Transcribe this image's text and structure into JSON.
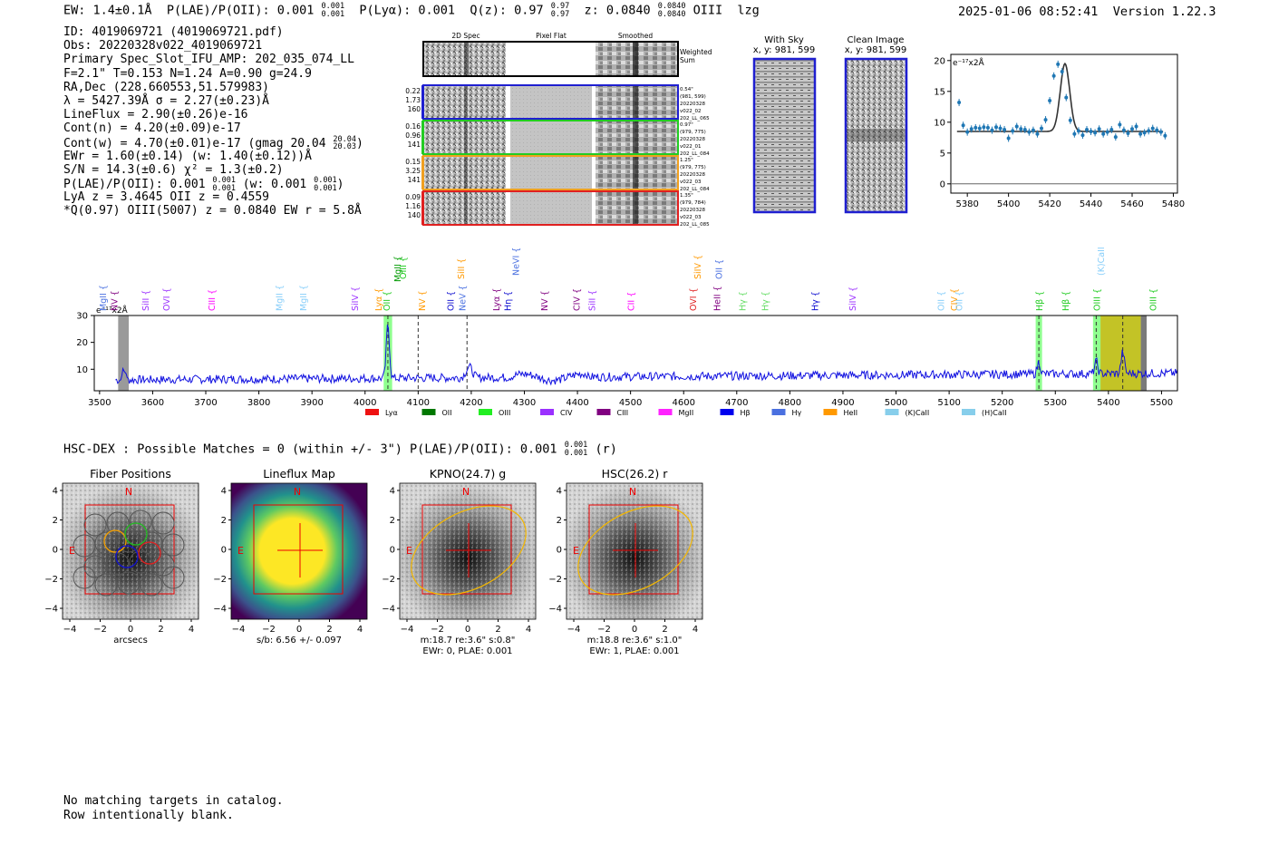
{
  "header": {
    "ew": "EW: 1.4±0.1Å",
    "plae": "P(LAE)/P(OII): 0.001",
    "plae_hi": "0.001",
    "plae_lo": "0.001",
    "plya": "P(Lyα): 0.001",
    "qz": "Q(z): 0.97",
    "qz_hi": "0.97",
    "qz_lo": "0.97",
    "z": "z: 0.0840",
    "z_hi": "0.0840",
    "z_lo": "0.0840",
    "line": "OIII",
    "flag": "lzg",
    "timestamp": "2025-01-06 08:52:41",
    "version": "Version 1.22.3"
  },
  "info": {
    "id": "ID: 4019069721 (4019069721.pdf)",
    "obs": "Obs: 20220328v022_4019069721",
    "primary": "Primary Spec_Slot_IFU_AMP: 202_035_074_LL",
    "fit": "F=2.1\"  T=0.153  N=1.24  A=0.90  g=24.9",
    "radec": "RA,Dec (228.660553,51.579983)",
    "lambda": "λ = 5427.39Å  σ = 2.27(±0.23)Å",
    "lineflux": "LineFlux = 2.90(±0.26)e-16",
    "contn": "Cont(n) = 4.20(±0.09)e-17",
    "contw": "Cont(w) = 4.70(±0.01)e-17 (gmag 20.04",
    "gmag_hi": "20.04",
    "gmag_lo": "20.03",
    "contw_close": ")",
    "ewr": "EWr = 1.60(±0.14) (w: 1.40(±0.12))Å",
    "sn": "S/N = 14.3(±0.6)  χ² = 1.3(±0.2)",
    "plae2": "P(LAE)/P(OII): 0.001",
    "plae2_hi": "0.001",
    "plae2_lo": "0.001",
    "plae2_w": "(w: 0.001",
    "plae2_w_hi": "0.001",
    "plae2_w_lo": "0.001",
    "plae2_close": ")",
    "lya": "LyA z = 3.4645  OII z = 0.4559",
    "q": "*Q(0.97) OIII(5007) z = 0.0840  EW r = 5.8Å"
  },
  "cutouts": {
    "col_labels": [
      "2D Spec",
      "Pixel Flat",
      "Smoothed"
    ],
    "weighted_sum": "Weighted Sum",
    "rows": [
      {
        "left": [
          "0.22",
          "1.73",
          "160"
        ],
        "right": [
          "0.54\"",
          "(981, 599)",
          "20220328",
          "v022_02",
          "202_LL_065"
        ],
        "color": "#1f1fd0"
      },
      {
        "left": [
          "0.16",
          "0.96",
          "141"
        ],
        "right": [
          "0.97\"",
          "(979, 775)",
          "20220328",
          "v022_01",
          "202_LL_084"
        ],
        "color": "#22cc22"
      },
      {
        "left": [
          "0.15",
          "3.25",
          "141"
        ],
        "right": [
          "1.25\"",
          "(979, 775)",
          "20220328",
          "v022_03",
          "202_LL_084"
        ],
        "color": "#f0a020"
      },
      {
        "left": [
          "0.09",
          "1.16",
          "140"
        ],
        "right": [
          "1.35\"",
          "(979, 784)",
          "20220328",
          "v022_03",
          "202_LL_085"
        ],
        "color": "#e02020"
      }
    ],
    "with_sky": "With Sky",
    "clean_image": "Clean Image",
    "xy": "x, y: 981, 599"
  },
  "zoom_spectrum": {
    "type": "scatter",
    "ylabel_unit": "e⁻¹⁷x2Å",
    "xlim": [
      5372,
      5482
    ],
    "ylim": [
      -1.5,
      21
    ],
    "xticks": [
      5380,
      5400,
      5420,
      5440,
      5460,
      5480
    ],
    "yticks": [
      0,
      5,
      10,
      15,
      20
    ],
    "x": [
      5376,
      5378,
      5380,
      5382,
      5384,
      5386,
      5388,
      5390,
      5392,
      5394,
      5396,
      5398,
      5400,
      5402,
      5404,
      5406,
      5408,
      5410,
      5412,
      5414,
      5416,
      5418,
      5420,
      5422,
      5424,
      5426,
      5428,
      5430,
      5432,
      5434,
      5436,
      5438,
      5440,
      5442,
      5444,
      5446,
      5448,
      5450,
      5452,
      5454,
      5456,
      5458,
      5460,
      5462,
      5464,
      5466,
      5468,
      5470,
      5472,
      5474,
      5476
    ],
    "y": [
      13.2,
      9.5,
      8.4,
      8.9,
      9.1,
      9.0,
      9.2,
      9.1,
      8.7,
      9.2,
      9.0,
      8.8,
      7.4,
      8.6,
      9.3,
      8.9,
      8.8,
      8.4,
      8.7,
      8.1,
      9.0,
      10.4,
      13.5,
      17.5,
      19.4,
      18.2,
      14.0,
      10.3,
      8.1,
      8.6,
      7.9,
      8.8,
      8.5,
      8.3,
      8.9,
      8.1,
      8.4,
      8.8,
      7.6,
      9.6,
      8.7,
      8.2,
      8.9,
      9.3,
      8.1,
      8.3,
      8.6,
      9.0,
      8.7,
      8.4,
      7.8
    ],
    "fit_center": 5427.4,
    "fit_sigma": 2.27,
    "fit_amp": 11.0,
    "fit_cont": 8.5
  },
  "main_spectrum": {
    "type": "line",
    "ylabel_unit": "e⁻¹⁷x2Å",
    "xlim": [
      3490,
      5530
    ],
    "ylim": [
      2,
      30
    ],
    "xticks": [
      3500,
      3600,
      3700,
      3800,
      3900,
      4000,
      4100,
      4200,
      4300,
      4400,
      4500,
      4600,
      4700,
      4800,
      4900,
      5000,
      5100,
      5200,
      5300,
      5400,
      5500
    ],
    "yticks": [
      10,
      20,
      30
    ],
    "features": [
      {
        "x": 4043,
        "amp": 20,
        "w": 3
      },
      {
        "x": 4196,
        "amp": 4,
        "w": 6
      },
      {
        "x": 5269,
        "amp": 4.5,
        "w": 3
      },
      {
        "x": 5377,
        "amp": 4.5,
        "w": 3
      },
      {
        "x": 5427,
        "amp": 8,
        "w": 3
      }
    ],
    "line_labels": [
      {
        "x": 3505,
        "name": "MgII",
        "color": "#4a70e0",
        "tier": 1
      },
      {
        "x": 3527,
        "name": "NV",
        "color": "#800080",
        "tier": 1
      },
      {
        "x": 3586,
        "name": "SiII",
        "color": "#9b30ff",
        "tier": 1
      },
      {
        "x": 3625,
        "name": "OVI",
        "color": "#9b30ff",
        "tier": 1
      },
      {
        "x": 3710,
        "name": "CIII",
        "color": "#ff00ff",
        "tier": 1
      },
      {
        "x": 3837,
        "name": "MgII",
        "color": "#87cefa",
        "tier": 1
      },
      {
        "x": 3883,
        "name": "MgII",
        "color": "#87cefa",
        "tier": 1
      },
      {
        "x": 3980,
        "name": "SiIV",
        "color": "#9b30ff",
        "tier": 1
      },
      {
        "x": 4024,
        "name": "Lyα",
        "color": "#ff9900",
        "tier": 1
      },
      {
        "x": 4040,
        "name": "OII",
        "color": "#22cc22",
        "tier": 1
      },
      {
        "x": 4060,
        "name": "MgII",
        "color": "#009900",
        "tier": 2
      },
      {
        "x": 4070,
        "name": "OIII",
        "color": "#22cc22",
        "tier": 3
      },
      {
        "x": 4106,
        "name": "NV",
        "color": "#ff9900",
        "tier": 1
      },
      {
        "x": 4160,
        "name": "OII",
        "color": "#1010d0",
        "tier": 1
      },
      {
        "x": 4182,
        "name": "NeV",
        "color": "#4a70e0",
        "tier": 1
      },
      {
        "x": 4180,
        "name": "SiII",
        "color": "#ff9900",
        "tier": 3
      },
      {
        "x": 4283,
        "name": "NeVI",
        "color": "#4a70e0",
        "tier": 4
      },
      {
        "x": 4246,
        "name": "Lyα",
        "color": "#800080",
        "tier": 1
      },
      {
        "x": 4268,
        "name": "Hη",
        "color": "#1010d0",
        "tier": 1
      },
      {
        "x": 4337,
        "name": "NV",
        "color": "#800080",
        "tier": 1
      },
      {
        "x": 4397,
        "name": "CIV",
        "color": "#800080",
        "tier": 1
      },
      {
        "x": 4426,
        "name": "SiII",
        "color": "#9b30ff",
        "tier": 1
      },
      {
        "x": 4500,
        "name": "CII",
        "color": "#ff00ff",
        "tier": 1
      },
      {
        "x": 4617,
        "name": "OVI",
        "color": "#e02020",
        "tier": 1
      },
      {
        "x": 4625,
        "name": "SiIV",
        "color": "#ff9900",
        "tier": 3
      },
      {
        "x": 4662,
        "name": "HeII",
        "color": "#800080",
        "tier": 1
      },
      {
        "x": 4665,
        "name": "OII",
        "color": "#4a70e0",
        "tier": 3
      },
      {
        "x": 4710,
        "name": "Hγ",
        "color": "#66dd66",
        "tier": 1
      },
      {
        "x": 4752,
        "name": "Hγ",
        "color": "#66dd66",
        "tier": 1
      },
      {
        "x": 4846,
        "name": "Hγ",
        "color": "#1010d0",
        "tier": 1
      },
      {
        "x": 4917,
        "name": "SiIV",
        "color": "#9b30ff",
        "tier": 1
      },
      {
        "x": 5084,
        "name": "OII",
        "color": "#87cefa",
        "tier": 1
      },
      {
        "x": 5108,
        "name": "CIV",
        "color": "#ff9900",
        "tier": 1
      },
      {
        "x": 5118,
        "name": "OII",
        "color": "#87cefa",
        "tier": 1
      },
      {
        "x": 5269,
        "name": "Hβ",
        "color": "#22cc22",
        "tier": 1
      },
      {
        "x": 5318,
        "name": "Hβ",
        "color": "#22cc22",
        "tier": 1
      },
      {
        "x": 5377,
        "name": "OIII",
        "color": "#22cc22",
        "tier": 1
      },
      {
        "x": 5385,
        "name": "(K)CaII",
        "color": "#87cefa",
        "tier": 4
      },
      {
        "x": 5483,
        "name": "OIII",
        "color": "#22cc22",
        "tier": 1
      }
    ],
    "legend": [
      {
        "name": "Lyα",
        "color": "#ee1111"
      },
      {
        "name": "OII",
        "color": "#007700"
      },
      {
        "name": "OIII",
        "color": "#22ee22"
      },
      {
        "name": "CIV",
        "color": "#9b30ff"
      },
      {
        "name": "CIII",
        "color": "#800080"
      },
      {
        "name": "MgII",
        "color": "#ff22ff"
      },
      {
        "name": "Hβ",
        "color": "#0000ee"
      },
      {
        "name": "Hγ",
        "color": "#4a70e0"
      },
      {
        "name": "HeII",
        "color": "#ff9900"
      },
      {
        "name": "(K)CaII",
        "color": "#87ceeb"
      },
      {
        "name": "(H)CaII",
        "color": "#87ceeb"
      }
    ]
  },
  "hsc": {
    "line": "HSC-DEX : Possible Matches = 0 (within +/- 3\")  P(LAE)/P(OII): 0.001",
    "line_hi": "0.001",
    "line_lo": "0.001",
    "line_close": "(r)"
  },
  "panels": [
    {
      "title": "Fiber Positions",
      "sub1": "arcsecs",
      "sub2": ""
    },
    {
      "title": "Lineflux Map",
      "sub1": "s/b: 6.56 +/- 0.097",
      "sub2": ""
    },
    {
      "title": "KPNO(24.7) g",
      "sub1": "m:18.7   re:3.6\"   s:0.8\"",
      "sub2": "EWr: 0, PLAE: 0.001"
    },
    {
      "title": "HSC(26.2) r",
      "sub1": "m:18.8   re:3.6\"   s:1.0\"",
      "sub2": "EWr: 1, PLAE: 0.001"
    }
  ],
  "panel_ticks": [
    "4",
    "2",
    "0",
    "−2",
    "−4"
  ],
  "panel_xticks": [
    "−4",
    "−2",
    "0",
    "2",
    "4"
  ],
  "compass": {
    "n": "N",
    "e": "E"
  },
  "footer": {
    "line1": "No matching targets in catalog.",
    "line2": "Row intentionally blank."
  }
}
